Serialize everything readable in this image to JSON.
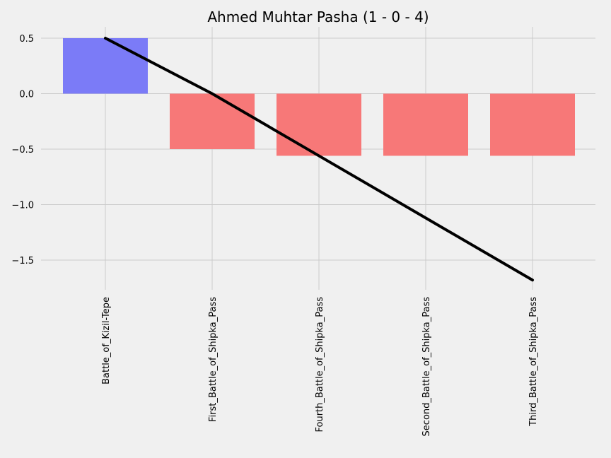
{
  "chart_data": {
    "type": "bar",
    "title": "Ahmed Muhtar Pasha (1 - 0 - 4)",
    "xlabel": "",
    "ylabel": "",
    "categories": [
      "Battle_of_Kizil-Tepe",
      "First_Battle_of_Shipka_Pass",
      "Fourth_Battle_of_Shipka_Pass",
      "Second_Battle_of_Shipka_Pass",
      "Third_Battle_of_Shipka_Pass"
    ],
    "values": [
      0.5,
      -0.5,
      -0.56,
      -0.56,
      -0.56
    ],
    "cumulative_line": [
      0.5,
      0.0,
      -0.56,
      -1.12,
      -1.68
    ],
    "positive_color": "#7b7bf7",
    "negative_color": "#f77878",
    "line_color": "#000000",
    "ylim": [
      -1.75,
      0.6
    ],
    "yticks": [
      0.5,
      0.0,
      -0.5,
      -1.0,
      -1.5
    ],
    "ytick_labels": [
      "0.5",
      "0.0",
      "−0.5",
      "−1.0",
      "−1.5"
    ],
    "grid": true
  }
}
